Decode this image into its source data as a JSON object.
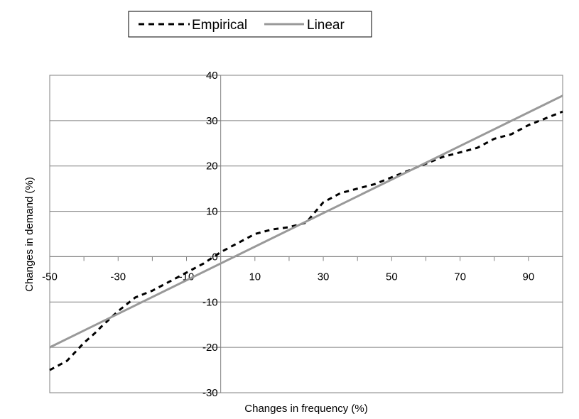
{
  "chart_data": {
    "type": "line",
    "title": "",
    "xlabel": "Changes in frequency (%)",
    "ylabel": "Changes in demand (%)",
    "xlim": [
      -50,
      100
    ],
    "ylim": [
      -30,
      40
    ],
    "x_ticks": [
      -50,
      -30,
      -10,
      10,
      30,
      50,
      70,
      90
    ],
    "x_tick_labels": [
      "-50",
      "-30",
      "-10",
      "10",
      "30",
      "50",
      "70",
      "90"
    ],
    "y_ticks": [
      -30,
      -20,
      -10,
      0,
      10,
      20,
      30,
      40
    ],
    "y_tick_labels": [
      "-30",
      "-20",
      "-10",
      "0",
      "10",
      "20",
      "30",
      "40"
    ],
    "grid": {
      "horizontal": true,
      "vertical": false
    },
    "legend_position": "top",
    "series": [
      {
        "name": "Empirical",
        "style": "dashed",
        "color": "#000000",
        "x": [
          -50,
          -45,
          -40,
          -37,
          -35,
          -30,
          -25,
          -20,
          -15,
          -10,
          -5,
          0,
          5,
          10,
          15,
          20,
          25,
          30,
          35,
          40,
          45,
          50,
          55,
          60,
          65,
          70,
          75,
          80,
          85,
          90,
          95,
          100
        ],
        "y": [
          -25,
          -23,
          -19,
          -17,
          -15.5,
          -12,
          -9,
          -7.5,
          -5.5,
          -3.5,
          -1.5,
          1,
          3,
          5,
          6,
          6.5,
          7.5,
          12,
          14,
          15,
          16,
          17.5,
          19,
          20.5,
          22,
          23,
          24,
          26,
          27,
          29,
          30.5,
          32
        ]
      },
      {
        "name": "Linear",
        "style": "solid",
        "color": "#999999",
        "x": [
          -50,
          100
        ],
        "y": [
          -20,
          35.5
        ]
      }
    ]
  }
}
